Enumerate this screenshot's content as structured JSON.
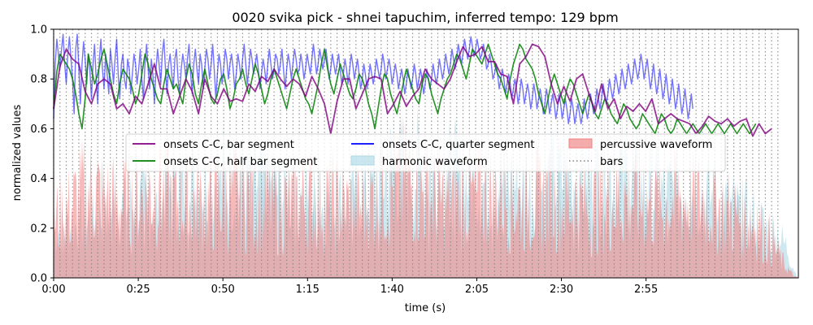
{
  "chart_data": {
    "type": "line",
    "title": "0020 svika pick - shnei tapuchim, inferred tempo: 129 bpm",
    "xlabel": "time (s)",
    "ylabel": "normalized values",
    "xlim": [
      0,
      220
    ],
    "ylim": [
      0,
      1.0
    ],
    "x_ticks": [
      {
        "value": 0,
        "label": "0:00"
      },
      {
        "value": 25,
        "label": "0:25"
      },
      {
        "value": 50,
        "label": "0:50"
      },
      {
        "value": 75,
        "label": "1:15"
      },
      {
        "value": 100,
        "label": "1:40"
      },
      {
        "value": 125,
        "label": "2:05"
      },
      {
        "value": 150,
        "label": "2:30"
      },
      {
        "value": 175,
        "label": "2:55"
      }
    ],
    "y_ticks": [
      {
        "value": 0.0,
        "label": "0.0"
      },
      {
        "value": 0.2,
        "label": "0.2"
      },
      {
        "value": 0.4,
        "label": "0.4"
      },
      {
        "value": 0.6,
        "label": "0.6"
      },
      {
        "value": 0.8,
        "label": "0.8"
      },
      {
        "value": 1.0,
        "label": "1.0"
      }
    ],
    "grid": false,
    "legend_placement": "center",
    "bar_period_s": 1.8605,
    "bars_end_s": 214,
    "colors": {
      "bar_segment": "#800080",
      "half_bar_segment": "#008000",
      "quarter_segment": "#0000ff",
      "percussive": "#f08080",
      "harmonic": "#add8e6",
      "bars": "#808080"
    },
    "legend": [
      {
        "key": "bar_segment",
        "label": "onsets C-C, bar segment",
        "kind": "line"
      },
      {
        "key": "half_bar_segment",
        "label": "onsets C-C, half bar segment",
        "kind": "line"
      },
      {
        "key": "quarter_segment",
        "label": "onsets C-C, quarter segment",
        "kind": "line"
      },
      {
        "key": "harmonic",
        "label": "harmonic waveform",
        "kind": "area"
      },
      {
        "key": "percussive",
        "label": "percussive waveform",
        "kind": "area"
      },
      {
        "key": "bars",
        "label": "bars",
        "kind": "dotted"
      }
    ],
    "series": [
      {
        "key": "bar_segment",
        "name": "onsets C-C, bar segment",
        "x_start": 0,
        "x_step": 1.8605,
        "values": [
          0.68,
          0.85,
          0.92,
          0.88,
          0.86,
          0.75,
          0.7,
          0.78,
          0.8,
          0.78,
          0.68,
          0.7,
          0.66,
          0.73,
          0.7,
          0.78,
          0.86,
          0.76,
          0.76,
          0.66,
          0.73,
          0.8,
          0.75,
          0.66,
          0.8,
          0.73,
          0.7,
          0.76,
          0.71,
          0.72,
          0.71,
          0.78,
          0.75,
          0.81,
          0.79,
          0.84,
          0.8,
          0.77,
          0.8,
          0.78,
          0.73,
          0.81,
          0.76,
          0.7,
          0.58,
          0.71,
          0.8,
          0.8,
          0.68,
          0.74,
          0.8,
          0.81,
          0.8,
          0.66,
          0.7,
          0.75,
          0.69,
          0.73,
          0.76,
          0.84,
          0.8,
          0.78,
          0.76,
          0.8,
          0.87,
          0.93,
          0.89,
          0.9,
          0.93,
          0.87,
          0.87,
          0.82,
          0.81,
          0.7,
          0.86,
          0.89,
          0.94,
          0.93,
          0.89,
          0.78,
          0.7,
          0.77,
          0.71,
          0.8,
          0.82,
          0.74,
          0.67,
          0.78,
          0.68,
          0.72,
          0.64,
          0.69,
          0.67,
          0.7,
          0.67,
          0.72,
          0.62,
          0.64,
          0.66,
          0.64,
          0.63,
          0.62,
          0.58,
          0.61,
          0.65,
          0.63,
          0.62,
          0.64,
          0.61,
          0.63,
          0.64,
          0.57,
          0.62,
          0.58,
          0.6
        ]
      },
      {
        "key": "half_bar_segment",
        "name": "onsets C-C, half bar segment",
        "x_start": 0,
        "x_step": 0.93025,
        "values": [
          0.68,
          0.83,
          0.9,
          0.88,
          0.86,
          0.84,
          0.8,
          0.74,
          0.66,
          0.6,
          0.72,
          0.9,
          0.84,
          0.78,
          0.82,
          0.88,
          0.92,
          0.86,
          0.8,
          0.74,
          0.7,
          0.78,
          0.84,
          0.82,
          0.8,
          0.76,
          0.7,
          0.74,
          0.82,
          0.9,
          0.86,
          0.8,
          0.76,
          0.72,
          0.7,
          0.78,
          0.84,
          0.8,
          0.76,
          0.78,
          0.74,
          0.7,
          0.8,
          0.86,
          0.82,
          0.74,
          0.7,
          0.78,
          0.84,
          0.78,
          0.72,
          0.7,
          0.74,
          0.8,
          0.82,
          0.76,
          0.68,
          0.72,
          0.78,
          0.8,
          0.84,
          0.78,
          0.74,
          0.8,
          0.86,
          0.82,
          0.76,
          0.7,
          0.74,
          0.8,
          0.84,
          0.8,
          0.76,
          0.72,
          0.68,
          0.74,
          0.8,
          0.84,
          0.8,
          0.76,
          0.72,
          0.7,
          0.66,
          0.72,
          0.78,
          0.86,
          0.92,
          0.84,
          0.78,
          0.74,
          0.8,
          0.86,
          0.82,
          0.78,
          0.74,
          0.72,
          0.76,
          0.82,
          0.8,
          0.76,
          0.7,
          0.66,
          0.6,
          0.68,
          0.76,
          0.82,
          0.8,
          0.74,
          0.7,
          0.66,
          0.72,
          0.78,
          0.84,
          0.8,
          0.76,
          0.72,
          0.7,
          0.78,
          0.82,
          0.8,
          0.74,
          0.7,
          0.66,
          0.72,
          0.76,
          0.8,
          0.82,
          0.86,
          0.9,
          0.88,
          0.84,
          0.8,
          0.86,
          0.92,
          0.9,
          0.88,
          0.86,
          0.9,
          0.94,
          0.9,
          0.86,
          0.82,
          0.8,
          0.76,
          0.72,
          0.8,
          0.86,
          0.9,
          0.94,
          0.92,
          0.88,
          0.86,
          0.84,
          0.8,
          0.74,
          0.7,
          0.66,
          0.72,
          0.78,
          0.82,
          0.78,
          0.74,
          0.7,
          0.76,
          0.8,
          0.78,
          0.74,
          0.7,
          0.66,
          0.7,
          0.74,
          0.7,
          0.66,
          0.64,
          0.68,
          0.72,
          0.7,
          0.66,
          0.64,
          0.62,
          0.66,
          0.7,
          0.68,
          0.64,
          0.62,
          0.6,
          0.62,
          0.66,
          0.64,
          0.62,
          0.6,
          0.58,
          0.62,
          0.66,
          0.64,
          0.6,
          0.58,
          0.6,
          0.64,
          0.62,
          0.6,
          0.58,
          0.6,
          0.62,
          0.6,
          0.58,
          0.6,
          0.62,
          0.6,
          0.58,
          0.6,
          0.62,
          0.6,
          0.58,
          0.6,
          0.62,
          0.6,
          0.58,
          0.6,
          0.62,
          0.6,
          0.58,
          0.6,
          0.62
        ]
      },
      {
        "key": "quarter_segment",
        "name": "onsets C-C, quarter segment",
        "x_start": 0,
        "x_step": 0.4651,
        "values": [
          0.64,
          0.86,
          0.96,
          0.9,
          0.84,
          0.92,
          0.98,
          0.86,
          0.78,
          0.9,
          0.97,
          0.88,
          0.8,
          0.66,
          0.92,
          0.98,
          0.84,
          0.7,
          0.86,
          0.95,
          0.88,
          0.78,
          0.9,
          0.84,
          0.72,
          0.86,
          0.94,
          0.8,
          0.7,
          0.88,
          0.96,
          0.84,
          0.76,
          0.9,
          0.82,
          0.74,
          0.92,
          0.86,
          0.78,
          0.88,
          0.96,
          0.82,
          0.72,
          0.86,
          0.9,
          0.8,
          0.76,
          0.88,
          0.84,
          0.74,
          0.82,
          0.9,
          0.86,
          0.78,
          0.84,
          0.92,
          0.8,
          0.72,
          0.86,
          0.94,
          0.84,
          0.76,
          0.88,
          0.82,
          0.7,
          0.84,
          0.92,
          0.86,
          0.78,
          0.9,
          0.96,
          0.84,
          0.74,
          0.86,
          0.9,
          0.82,
          0.76,
          0.88,
          0.92,
          0.8,
          0.74,
          0.84,
          0.9,
          0.86,
          0.8,
          0.88,
          0.94,
          0.82,
          0.74,
          0.86,
          0.92,
          0.84,
          0.78,
          0.9,
          0.86,
          0.76,
          0.84,
          0.92,
          0.88,
          0.8,
          0.86,
          0.94,
          0.84,
          0.72,
          0.82,
          0.9,
          0.86,
          0.78,
          0.84,
          0.92,
          0.88,
          0.8,
          0.86,
          0.9,
          0.84,
          0.76,
          0.82,
          0.9,
          0.86,
          0.8,
          0.88,
          0.94,
          0.86,
          0.78,
          0.84,
          0.92,
          0.88,
          0.82,
          0.86,
          0.9,
          0.84,
          0.76,
          0.82,
          0.88,
          0.84,
          0.78,
          0.86,
          0.92,
          0.86,
          0.8,
          0.84,
          0.9,
          0.88,
          0.82,
          0.86,
          0.92,
          0.84,
          0.76,
          0.84,
          0.9,
          0.86,
          0.8,
          0.86,
          0.92,
          0.88,
          0.82,
          0.84,
          0.9,
          0.86,
          0.8,
          0.84,
          0.9,
          0.86,
          0.82,
          0.88,
          0.94,
          0.88,
          0.82,
          0.86,
          0.92,
          0.88,
          0.84,
          0.88,
          0.92,
          0.86,
          0.8,
          0.84,
          0.9,
          0.86,
          0.82,
          0.86,
          0.9,
          0.84,
          0.78,
          0.82,
          0.88,
          0.84,
          0.78,
          0.84,
          0.9,
          0.86,
          0.8,
          0.84,
          0.88,
          0.82,
          0.76,
          0.8,
          0.86,
          0.82,
          0.76,
          0.8,
          0.86,
          0.82,
          0.78,
          0.82,
          0.88,
          0.84,
          0.8,
          0.84,
          0.9,
          0.86,
          0.8,
          0.84,
          0.88,
          0.84,
          0.78,
          0.82,
          0.86,
          0.82,
          0.76,
          0.8,
          0.84,
          0.8,
          0.74,
          0.78,
          0.84,
          0.8,
          0.76,
          0.8,
          0.86,
          0.82,
          0.76,
          0.8,
          0.84,
          0.8,
          0.74,
          0.78,
          0.84,
          0.8,
          0.76,
          0.8,
          0.86,
          0.82,
          0.78,
          0.82,
          0.88,
          0.84,
          0.8,
          0.84,
          0.9,
          0.86,
          0.82,
          0.86,
          0.92,
          0.88,
          0.84,
          0.88,
          0.94,
          0.9,
          0.86,
          0.9,
          0.96,
          0.92,
          0.88,
          0.92,
          0.97,
          0.93,
          0.89,
          0.92,
          0.96,
          0.92,
          0.88,
          0.9,
          0.94,
          0.9,
          0.84,
          0.86,
          0.9,
          0.86,
          0.8,
          0.82,
          0.86,
          0.82,
          0.76,
          0.8,
          0.84,
          0.8,
          0.74,
          0.78,
          0.82,
          0.78,
          0.72,
          0.76,
          0.8,
          0.76,
          0.7,
          0.74,
          0.8,
          0.76,
          0.7,
          0.74,
          0.78,
          0.74,
          0.68,
          0.72,
          0.78,
          0.74,
          0.68,
          0.72,
          0.76,
          0.72,
          0.66,
          0.7,
          0.76,
          0.72,
          0.66,
          0.7,
          0.74,
          0.7,
          0.64,
          0.68,
          0.74,
          0.7,
          0.64,
          0.68,
          0.72,
          0.68,
          0.62,
          0.66,
          0.72,
          0.68,
          0.62,
          0.66,
          0.7,
          0.66,
          0.62,
          0.66,
          0.72,
          0.68,
          0.64,
          0.68,
          0.74,
          0.7,
          0.66,
          0.7,
          0.76,
          0.72,
          0.68,
          0.72,
          0.78,
          0.74,
          0.7,
          0.74,
          0.8,
          0.76,
          0.72,
          0.76,
          0.82,
          0.78,
          0.74,
          0.78,
          0.84,
          0.8,
          0.76,
          0.8,
          0.86,
          0.82,
          0.78,
          0.82,
          0.88,
          0.84,
          0.8,
          0.84,
          0.9,
          0.86,
          0.8,
          0.84,
          0.88,
          0.82,
          0.76,
          0.8,
          0.86,
          0.8,
          0.74,
          0.78,
          0.84,
          0.78,
          0.72,
          0.76,
          0.82,
          0.76,
          0.7,
          0.74,
          0.8,
          0.74,
          0.68,
          0.72,
          0.78,
          0.72,
          0.66,
          0.7,
          0.76,
          0.7,
          0.64,
          0.68,
          0.74,
          0.68
        ]
      }
    ],
    "harmonic_envelope": {
      "x": [
        0,
        5,
        10,
        15,
        20,
        25,
        30,
        35,
        40,
        45,
        50,
        55,
        60,
        65,
        70,
        75,
        80,
        85,
        90,
        95,
        100,
        105,
        110,
        115,
        120,
        125,
        130,
        135,
        140,
        145,
        150,
        155,
        160,
        165,
        170,
        175,
        180,
        185,
        190,
        195,
        200,
        205,
        208,
        210,
        212,
        214,
        215,
        217,
        218,
        219,
        220
      ],
      "values": [
        0.3,
        0.32,
        0.35,
        0.4,
        0.45,
        0.48,
        0.42,
        0.55,
        0.6,
        0.62,
        0.65,
        0.58,
        0.6,
        0.56,
        0.52,
        0.5,
        0.46,
        0.48,
        0.52,
        0.56,
        0.72,
        0.68,
        0.72,
        0.62,
        0.66,
        0.6,
        0.58,
        0.62,
        0.56,
        0.6,
        0.65,
        0.62,
        0.63,
        0.7,
        0.64,
        0.58,
        0.54,
        0.55,
        0.56,
        0.5,
        0.44,
        0.4,
        0.36,
        0.32,
        0.3,
        0.28,
        0.24,
        0.18,
        0.1,
        0.04,
        0.0
      ]
    },
    "percussive_envelope": {
      "x": [
        0,
        5,
        10,
        15,
        20,
        25,
        30,
        35,
        40,
        45,
        50,
        55,
        60,
        65,
        70,
        75,
        80,
        85,
        90,
        95,
        100,
        105,
        110,
        115,
        120,
        125,
        130,
        135,
        140,
        145,
        150,
        155,
        160,
        165,
        170,
        175,
        180,
        185,
        190,
        195,
        200,
        205,
        208,
        210,
        212,
        214,
        215,
        217,
        218,
        219,
        220
      ],
      "values": [
        0.4,
        0.48,
        0.62,
        0.55,
        0.5,
        0.56,
        0.62,
        0.55,
        0.52,
        0.5,
        0.55,
        0.58,
        0.54,
        0.52,
        0.5,
        0.56,
        0.54,
        0.5,
        0.48,
        0.58,
        0.62,
        0.66,
        0.58,
        0.52,
        0.55,
        0.56,
        0.58,
        0.54,
        0.52,
        0.56,
        0.54,
        0.52,
        0.5,
        0.54,
        0.56,
        0.52,
        0.5,
        0.54,
        0.56,
        0.5,
        0.45,
        0.4,
        0.36,
        0.3,
        0.25,
        0.18,
        0.12,
        0.06,
        0.03,
        0.01,
        0.0
      ]
    }
  }
}
